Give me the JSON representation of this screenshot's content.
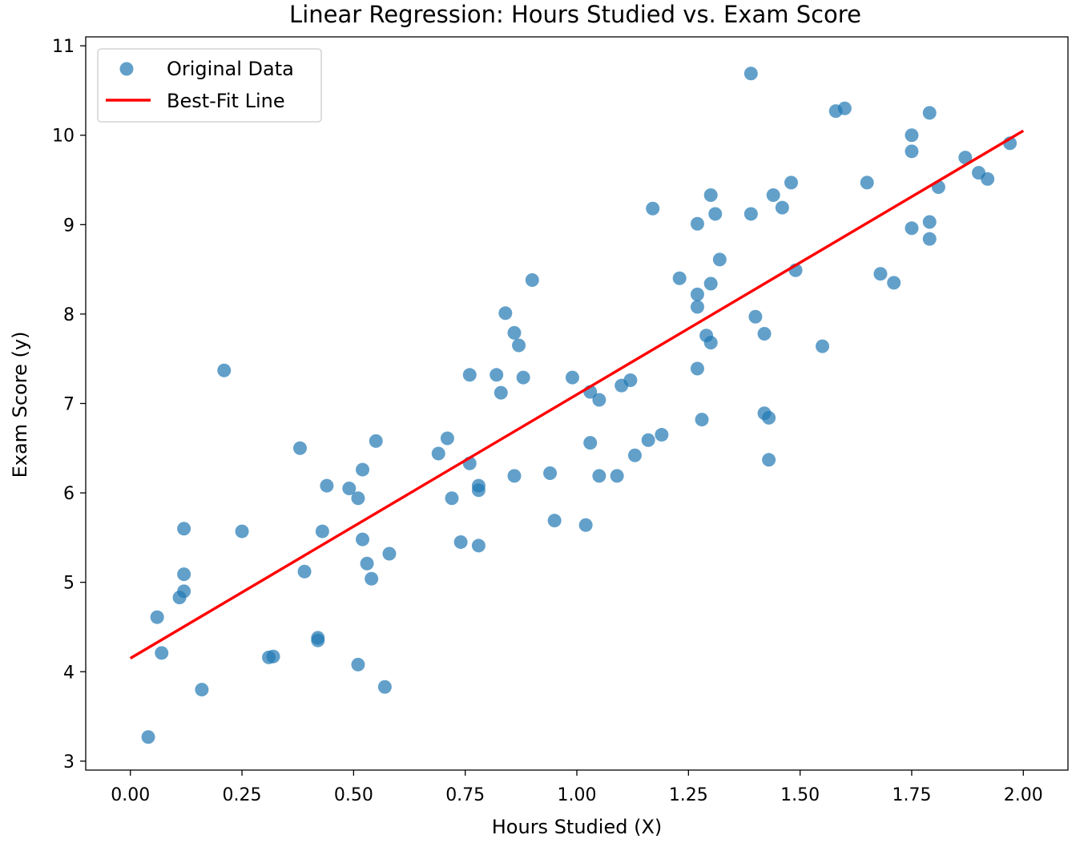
{
  "chart_data": {
    "type": "scatter",
    "title": "Linear Regression: Hours Studied vs. Exam Score",
    "xlabel": "Hours Studied (X)",
    "ylabel": "Exam Score (y)",
    "xlim": [
      -0.1,
      2.1
    ],
    "ylim": [
      2.9,
      11.1
    ],
    "xticks": [
      "0.00",
      "0.25",
      "0.50",
      "0.75",
      "1.00",
      "1.25",
      "1.50",
      "1.75",
      "2.00"
    ],
    "yticks": [
      "3",
      "4",
      "5",
      "6",
      "7",
      "8",
      "9",
      "10",
      "11"
    ],
    "grid": false,
    "legend_position": "upper left",
    "colors": {
      "points": "#1f77b4",
      "line": "#ff0000"
    },
    "series": [
      {
        "name": "Original Data",
        "kind": "scatter",
        "x": [
          0.04,
          0.06,
          0.07,
          0.11,
          0.12,
          0.12,
          0.12,
          0.16,
          0.21,
          0.25,
          0.31,
          0.32,
          0.38,
          0.39,
          0.42,
          0.42,
          0.43,
          0.44,
          0.49,
          0.51,
          0.51,
          0.52,
          0.52,
          0.53,
          0.54,
          0.55,
          0.57,
          0.58,
          0.69,
          0.71,
          0.72,
          0.74,
          0.76,
          0.76,
          0.78,
          0.78,
          0.78,
          0.82,
          0.83,
          0.84,
          0.86,
          0.86,
          0.87,
          0.88,
          0.9,
          0.94,
          0.95,
          0.99,
          1.02,
          1.03,
          1.03,
          1.05,
          1.05,
          1.09,
          1.1,
          1.12,
          1.13,
          1.16,
          1.17,
          1.19,
          1.23,
          1.27,
          1.27,
          1.27,
          1.27,
          1.28,
          1.29,
          1.3,
          1.3,
          1.3,
          1.31,
          1.32,
          1.39,
          1.39,
          1.4,
          1.42,
          1.42,
          1.43,
          1.43,
          1.44,
          1.46,
          1.48,
          1.49,
          1.55,
          1.58,
          1.6,
          1.65,
          1.68,
          1.71,
          1.75,
          1.75,
          1.75,
          1.79,
          1.79,
          1.79,
          1.81,
          1.87,
          1.9,
          1.92,
          1.97
        ],
        "y": [
          3.27,
          4.61,
          4.21,
          4.83,
          4.9,
          5.09,
          5.6,
          3.8,
          7.37,
          5.57,
          4.16,
          4.17,
          6.5,
          5.12,
          4.38,
          4.35,
          5.57,
          6.08,
          6.05,
          4.08,
          5.94,
          6.26,
          5.48,
          5.21,
          5.04,
          6.58,
          3.83,
          5.32,
          6.44,
          6.61,
          5.94,
          5.45,
          6.33,
          7.32,
          6.08,
          6.03,
          5.41,
          7.32,
          7.12,
          8.01,
          7.79,
          6.19,
          7.65,
          7.29,
          8.38,
          6.22,
          5.69,
          7.29,
          5.64,
          7.13,
          6.56,
          7.04,
          6.19,
          6.19,
          7.2,
          7.26,
          6.42,
          6.59,
          9.18,
          6.65,
          8.4,
          7.39,
          8.22,
          8.08,
          9.01,
          6.82,
          7.76,
          8.34,
          9.33,
          7.68,
          9.12,
          8.61,
          9.12,
          10.69,
          7.97,
          7.78,
          6.89,
          6.84,
          6.37,
          9.33,
          9.19,
          9.47,
          8.49,
          7.64,
          10.27,
          10.3,
          9.47,
          8.45,
          8.35,
          10.0,
          9.82,
          8.96,
          9.03,
          8.84,
          10.25,
          9.42,
          9.75,
          9.58,
          9.51,
          9.91
        ]
      },
      {
        "name": "Best-Fit Line",
        "kind": "line",
        "x": [
          0.0,
          2.0
        ],
        "y": [
          4.15,
          10.05
        ]
      }
    ]
  }
}
